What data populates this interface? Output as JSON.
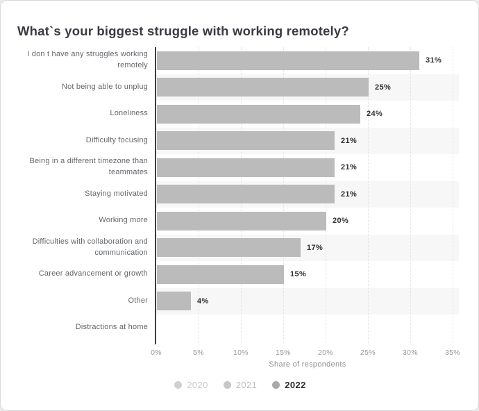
{
  "chart_data": {
    "type": "bar",
    "orientation": "horizontal",
    "title": "What`s your biggest struggle with working remotely?",
    "xlabel": "Share of respondents",
    "categories": [
      "I don t have any struggles working remotely",
      "Not being able to unplug",
      "Loneliness",
      "Difficulty focusing",
      "Being in a different timezone than teammates",
      "Staying motivated",
      "Working more",
      "Difficulties with collaboration and communication",
      "Career advancement or growth",
      "Other",
      "Distractions at home"
    ],
    "values": [
      31,
      25,
      24,
      21,
      21,
      21,
      20,
      17,
      15,
      4,
      null
    ],
    "value_suffix": "%",
    "xlim": [
      0,
      36
    ],
    "x_ticks": [
      "0%",
      "5%",
      "10%",
      "15%",
      "20%",
      "25%",
      "30%",
      "35%"
    ],
    "x_tick_step_percent": 5,
    "grid": "vertical-dotted",
    "row_stripes": "alternating",
    "legend_position": "bottom",
    "legend": [
      {
        "label": "2020",
        "active": false,
        "marker_color": "#d0d0d0",
        "text_color": "#c9c9c9"
      },
      {
        "label": "2021",
        "active": false,
        "marker_color": "#c6c6c6",
        "text_color": "#bdbdbd"
      },
      {
        "label": "2022",
        "active": true,
        "marker_color": "#a8a8a8",
        "text_color": "#2e2e30"
      }
    ],
    "colors": {
      "bar": "#bbbbbb",
      "row_stripe": "#f7f7f7",
      "gridline": "#e1e1e1",
      "axis_line": "#3d3d3f",
      "value_label": "#303030",
      "category_label": "#63666b",
      "tick_label": "#97999d",
      "axis_title": "#8f9296",
      "title": "#383b41"
    }
  }
}
